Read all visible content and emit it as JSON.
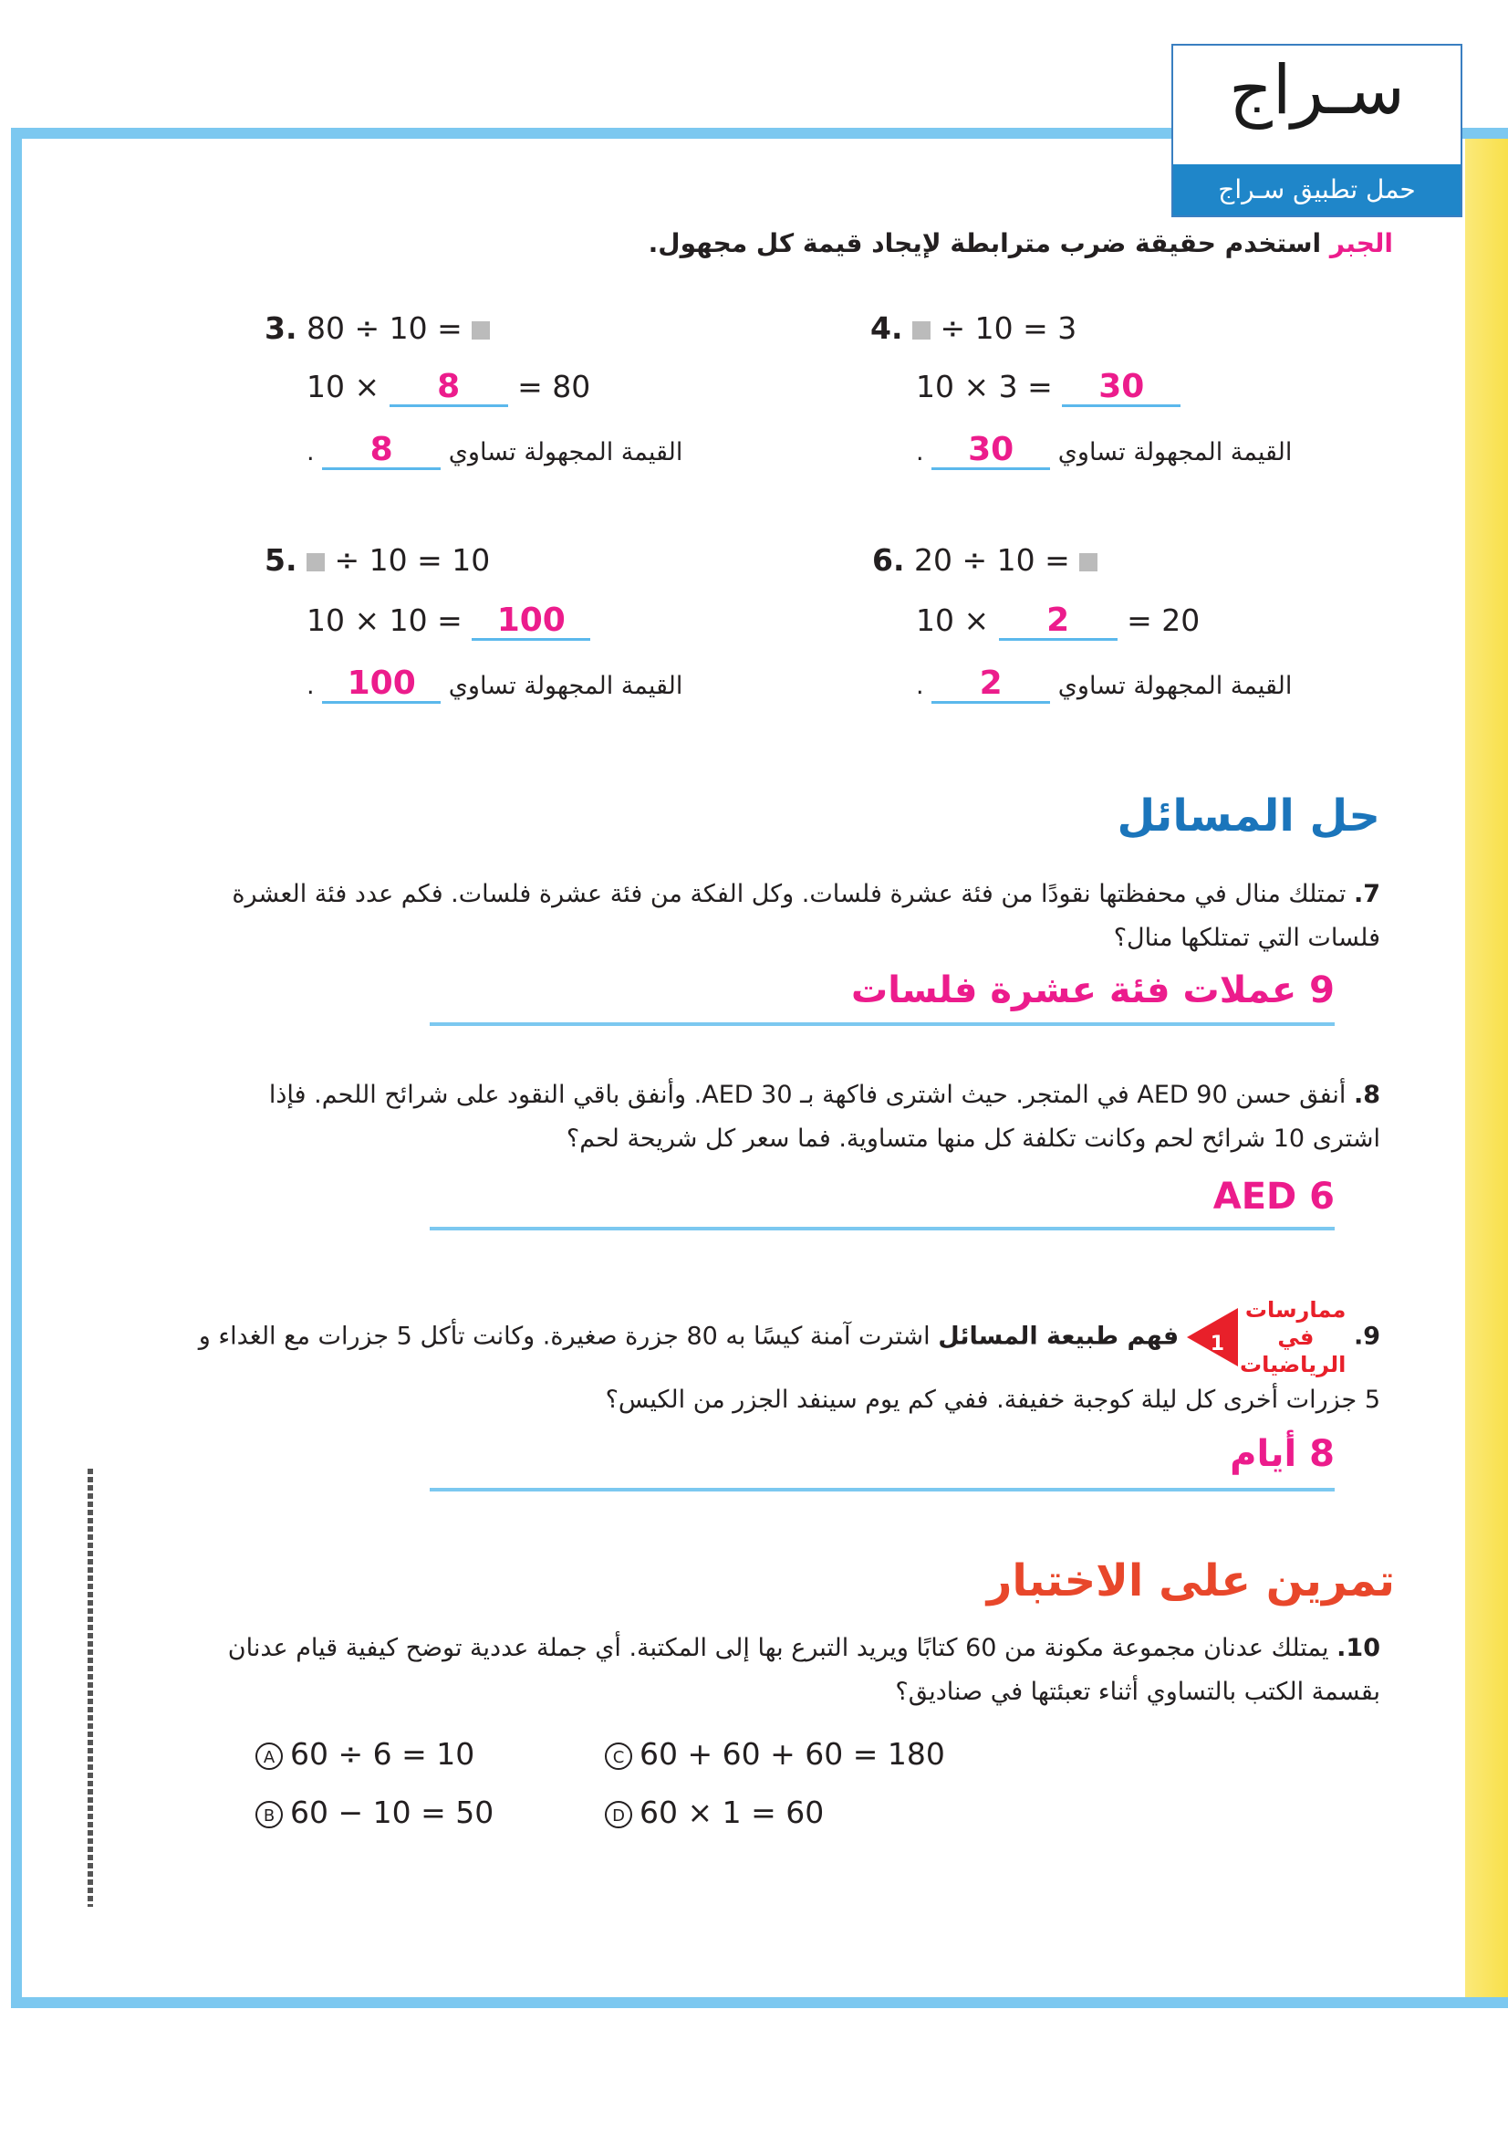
{
  "logo": {
    "word": "سـراج",
    "tagline": "حمل تطبيق سـراج"
  },
  "instruction": {
    "tag": "الجبر",
    "text": "استخدم حقيقة ضرب مترابطة لإيجاد قيمة كل مجهول."
  },
  "exercises": [
    {
      "num": "3.",
      "line1": "80 ÷ 10 =",
      "line2_pre": "10 ×",
      "line2_answer": "8",
      "line2_post": "= 80",
      "label": "القيمة المجهولة تساوي",
      "answer": "8"
    },
    {
      "num": "4.",
      "line1": "÷ 10 = 3",
      "line2_pre": "10 × 3 =",
      "line2_answer": "30",
      "line2_post": "",
      "label": "القيمة المجهولة تساوي",
      "answer": "30"
    },
    {
      "num": "5.",
      "line1": "÷ 10 = 10",
      "line2_pre": "10 × 10 =",
      "line2_answer": "100",
      "line2_post": "",
      "label": "القيمة المجهولة تساوي",
      "answer": "100"
    },
    {
      "num": "6.",
      "line1": "20 ÷ 10 =",
      "line2_pre": "10 ×",
      "line2_answer": "2",
      "line2_post": "= 20",
      "label": "القيمة المجهولة تساوي",
      "answer": "2"
    }
  ],
  "problem_solving": {
    "heading": "حل المسائل",
    "q7": {
      "num": "7.",
      "text": "تمتلك منال في محفظتها نقودًا من فئة عشرة فلسات. وكل الفكة من فئة عشرة فلسات. فكم عدد فئة العشرة فلسات التي تمتلكها منال؟",
      "answer": "9 عملات فئة عشرة فلسات"
    },
    "q8": {
      "num": "8.",
      "text": "أنفق حسن AED 90 في المتجر. حيث اشترى فاكهة بـ AED 30. وأنفق باقي النقود على شرائح اللحم. فإذا اشترى 10 شرائح لحم وكانت تكلفة كل منها متساوية. فما سعر كل شريحة لحم؟",
      "answer": "AED 6"
    },
    "q9": {
      "num": "9.",
      "badge": "ممارسات في الرياضيات",
      "badge_number": "1",
      "lead": "فهم طبيعة المسائل",
      "text": "اشترت آمنة كيسًا به 80 جزرة صغيرة. وكانت تأكل 5 جزرات مع الغداء و 5 جزرات أخرى كل ليلة كوجبة خفيفة. ففي كم يوم سينفد الجزر من الكيس؟",
      "answer": "8 أيام"
    }
  },
  "test_practice": {
    "heading": "تمرين على الاختبار",
    "q10": {
      "num": "10.",
      "text": "يمتلك عدنان مجموعة مكونة من 60 كتابًا ويريد التبرع بها إلى المكتبة. أي جملة عددية توضح كيفية قيام عدنان بقسمة الكتب بالتساوي أثناء تعبئتها في صناديق؟"
    },
    "options": [
      {
        "letter": "A",
        "text": "60 ÷ 6 = 10"
      },
      {
        "letter": "B",
        "text": "60 − 10 = 50"
      },
      {
        "letter": "C",
        "text": "60 + 60 + 60 = 180"
      },
      {
        "letter": "D",
        "text": "60 × 1 = 60"
      }
    ]
  },
  "colors": {
    "frame": "#7cc8f0",
    "answer": "#ec1c8c",
    "heading_blue": "#1b75bb",
    "heading_red": "#e8472b",
    "logo_band": "#1f86c9",
    "side": "#f8e04a"
  }
}
